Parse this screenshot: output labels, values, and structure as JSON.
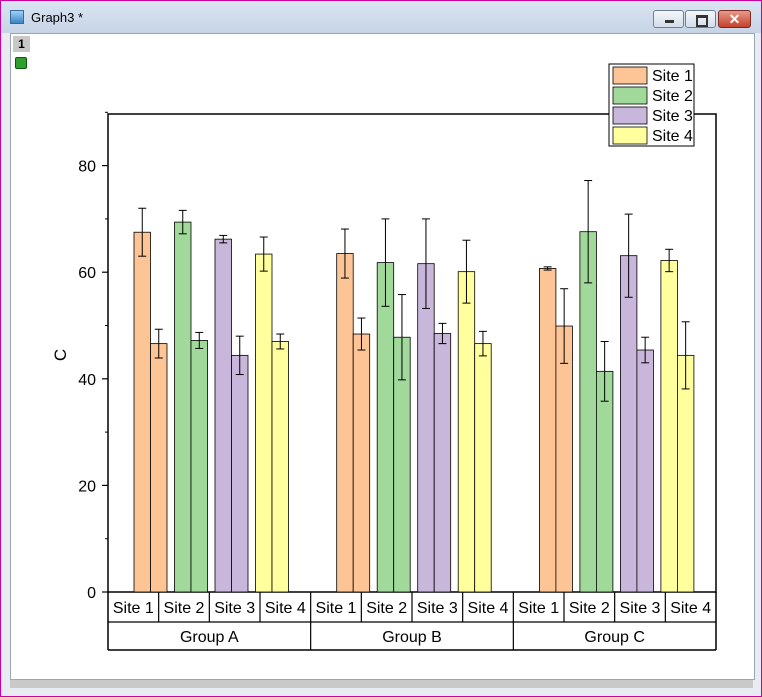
{
  "window": {
    "title": "Graph3 *",
    "layer_label": "1"
  },
  "icons": {
    "app": "graph-window-icon",
    "lock": "layer-lock-icon",
    "minimize": "minimize-icon",
    "maximize": "maximize-icon",
    "close": "close-icon"
  },
  "chart_data": {
    "type": "bar",
    "ylabel": "C",
    "ylim": [
      0,
      90
    ],
    "yticks": [
      0,
      20,
      40,
      60,
      80
    ],
    "groups": [
      {
        "label": "Group A",
        "sites": [
          {
            "label": "Site 1",
            "values": [
              67.5,
              46.6
            ],
            "errors": [
              4.5,
              2.7
            ]
          },
          {
            "label": "Site 2",
            "values": [
              69.4,
              47.2
            ],
            "errors": [
              2.2,
              1.5
            ]
          },
          {
            "label": "Site 3",
            "values": [
              66.2,
              44.4
            ],
            "errors": [
              0.7,
              3.6
            ]
          },
          {
            "label": "Site 4",
            "values": [
              63.4,
              47.0
            ],
            "errors": [
              3.2,
              1.4
            ]
          }
        ]
      },
      {
        "label": "Group B",
        "sites": [
          {
            "label": "Site 1",
            "values": [
              63.5,
              48.4
            ],
            "errors": [
              4.6,
              3.0
            ]
          },
          {
            "label": "Site 2",
            "values": [
              61.8,
              47.8
            ],
            "errors": [
              8.2,
              8.0
            ]
          },
          {
            "label": "Site 3",
            "values": [
              61.6,
              48.5
            ],
            "errors": [
              8.4,
              1.9
            ]
          },
          {
            "label": "Site 4",
            "values": [
              60.1,
              46.6
            ],
            "errors": [
              5.9,
              2.3
            ]
          }
        ]
      },
      {
        "label": "Group C",
        "sites": [
          {
            "label": "Site 1",
            "values": [
              60.7,
              49.9
            ],
            "errors": [
              0.3,
              7.0
            ]
          },
          {
            "label": "Site 2",
            "values": [
              67.6,
              41.4
            ],
            "errors": [
              9.6,
              5.6
            ]
          },
          {
            "label": "Site 3",
            "values": [
              63.1,
              45.4
            ],
            "errors": [
              7.8,
              2.4
            ]
          },
          {
            "label": "Site 4",
            "values": [
              62.2,
              44.4
            ],
            "errors": [
              2.1,
              6.3
            ]
          }
        ]
      }
    ],
    "legend": {
      "placement": "top-right",
      "entries": [
        {
          "label": "Site 1",
          "color": "#fdc596"
        },
        {
          "label": "Site 2",
          "color": "#a1d99b"
        },
        {
          "label": "Site 3",
          "color": "#c8b7db"
        },
        {
          "label": "Site 4",
          "color": "#ffff9e"
        }
      ]
    }
  }
}
